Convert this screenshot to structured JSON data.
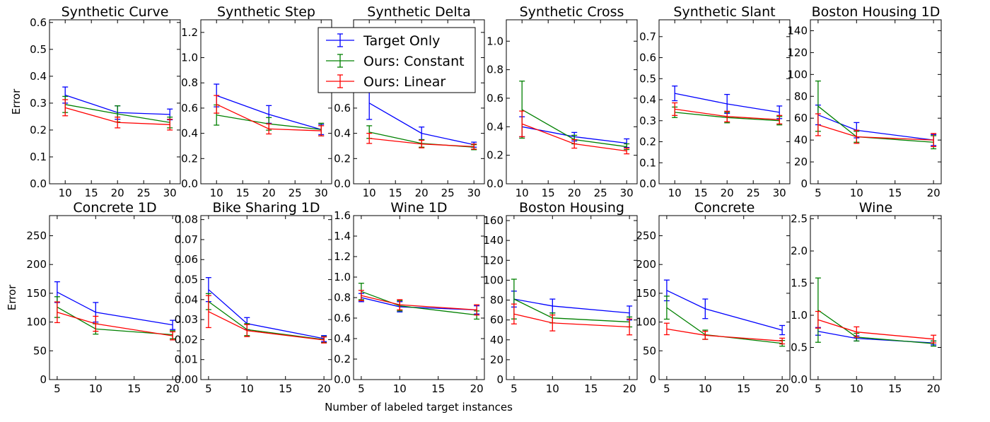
{
  "figure": {
    "xlabel": "Number of labeled target instances",
    "ylabel": "Error"
  },
  "legend": {
    "entries": [
      {
        "label": "Target Only",
        "color": "#0000ff"
      },
      {
        "label": "Ours: Constant",
        "color": "#008000"
      },
      {
        "label": "Ours: Linear",
        "color": "#ff0000"
      }
    ]
  },
  "chart_data": [
    {
      "type": "line",
      "title": "Synthetic Curve",
      "ylabel": "Error",
      "x": [
        10,
        20,
        30
      ],
      "xlim": [
        7,
        32
      ],
      "xticks": [
        10,
        15,
        20,
        25,
        30
      ],
      "ylim": [
        0,
        0.61
      ],
      "yticks": [
        0,
        0.1,
        0.2,
        0.3,
        0.4,
        0.5,
        0.6
      ],
      "yticklabels": [
        "0.0",
        "0.1",
        "0.2",
        "0.3",
        "0.4",
        "0.5",
        "0.6"
      ],
      "series": [
        {
          "name": "Target Only",
          "color": "#0000ff",
          "values": [
            0.33,
            0.265,
            0.258
          ],
          "errors": [
            0.03,
            0.025,
            0.02
          ]
        },
        {
          "name": "Ours: Constant",
          "color": "#008000",
          "values": [
            0.295,
            0.26,
            0.228
          ],
          "errors": [
            0.03,
            0.03,
            0.02
          ]
        },
        {
          "name": "Ours: Linear",
          "color": "#ff0000",
          "values": [
            0.283,
            0.228,
            0.22
          ],
          "errors": [
            0.03,
            0.02,
            0.02
          ]
        }
      ]
    },
    {
      "type": "line",
      "title": "Synthetic Step",
      "ylabel": "",
      "x": [
        10,
        20,
        30
      ],
      "xlim": [
        7,
        32
      ],
      "xticks": [
        10,
        15,
        20,
        25,
        30
      ],
      "ylim": [
        0,
        1.3
      ],
      "yticks": [
        0,
        0.2,
        0.4,
        0.6,
        0.8,
        1.0,
        1.2
      ],
      "yticklabels": [
        "0.0",
        "0.2",
        "0.4",
        "0.6",
        "0.8",
        "1.0",
        "1.2"
      ],
      "series": [
        {
          "name": "Target Only",
          "color": "#0000ff",
          "values": [
            0.7,
            0.55,
            0.43
          ],
          "errors": [
            0.09,
            0.07,
            0.04
          ]
        },
        {
          "name": "Ours: Constant",
          "color": "#008000",
          "values": [
            0.545,
            0.475,
            0.43
          ],
          "errors": [
            0.08,
            0.05,
            0.05
          ]
        },
        {
          "name": "Ours: Linear",
          "color": "#ff0000",
          "values": [
            0.63,
            0.435,
            0.42
          ],
          "errors": [
            0.07,
            0.04,
            0.04
          ]
        }
      ]
    },
    {
      "type": "line",
      "title": "Synthetic Delta",
      "ylabel": "",
      "x": [
        10,
        20,
        30
      ],
      "xlim": [
        7,
        32
      ],
      "xticks": [
        10,
        15,
        20,
        25,
        30
      ],
      "ylim": [
        0,
        1.3
      ],
      "yticks": [
        0,
        0.2,
        0.4,
        0.6,
        0.8,
        1.0,
        1.2
      ],
      "yticklabels": [
        "0.0",
        "0.2",
        "0.4",
        "0.6",
        "0.8",
        "1.0",
        "1.2"
      ],
      "series": [
        {
          "name": "Target Only",
          "color": "#0000ff",
          "values": [
            0.64,
            0.4,
            0.31
          ],
          "errors": [
            0.13,
            0.05,
            0.02
          ]
        },
        {
          "name": "Ours: Constant",
          "color": "#008000",
          "values": [
            0.41,
            0.32,
            0.29
          ],
          "errors": [
            0.05,
            0.03,
            0.02
          ]
        },
        {
          "name": "Ours: Linear",
          "color": "#ff0000",
          "values": [
            0.36,
            0.315,
            0.295
          ],
          "errors": [
            0.04,
            0.03,
            0.02
          ]
        }
      ]
    },
    {
      "type": "line",
      "title": "Synthetic Cross",
      "ylabel": "",
      "x": [
        10,
        20,
        30
      ],
      "xlim": [
        7,
        32
      ],
      "xticks": [
        10,
        15,
        20,
        25,
        30
      ],
      "ylim": [
        0,
        1.15
      ],
      "yticks": [
        0,
        0.2,
        0.4,
        0.6,
        0.8,
        1.0
      ],
      "yticklabels": [
        "0.0",
        "0.2",
        "0.4",
        "0.6",
        "0.8",
        "1.0"
      ],
      "series": [
        {
          "name": "Target Only",
          "color": "#0000ff",
          "values": [
            0.4,
            0.33,
            0.285
          ],
          "errors": [
            0.07,
            0.03,
            0.03
          ]
        },
        {
          "name": "Ours: Constant",
          "color": "#008000",
          "values": [
            0.52,
            0.31,
            0.26
          ],
          "errors": [
            0.2,
            0.03,
            0.02
          ]
        },
        {
          "name": "Ours: Linear",
          "color": "#ff0000",
          "values": [
            0.42,
            0.28,
            0.23
          ],
          "errors": [
            0.09,
            0.03,
            0.02
          ]
        }
      ]
    },
    {
      "type": "line",
      "title": "Synthetic Slant",
      "ylabel": "",
      "x": [
        10,
        20,
        30
      ],
      "xlim": [
        7,
        32
      ],
      "xticks": [
        10,
        15,
        20,
        25,
        30
      ],
      "ylim": [
        0,
        0.78
      ],
      "yticks": [
        0,
        0.1,
        0.2,
        0.3,
        0.4,
        0.5,
        0.6,
        0.7
      ],
      "yticklabels": [
        "0.0",
        "0.1",
        "0.2",
        "0.3",
        "0.4",
        "0.5",
        "0.6",
        "0.7"
      ],
      "series": [
        {
          "name": "Target Only",
          "color": "#0000ff",
          "values": [
            0.43,
            0.38,
            0.34
          ],
          "errors": [
            0.035,
            0.045,
            0.03
          ]
        },
        {
          "name": "Ours: Constant",
          "color": "#008000",
          "values": [
            0.34,
            0.315,
            0.3
          ],
          "errors": [
            0.025,
            0.025,
            0.02
          ]
        },
        {
          "name": "Ours: Linear",
          "color": "#ff0000",
          "values": [
            0.355,
            0.32,
            0.305
          ],
          "errors": [
            0.03,
            0.025,
            0.02
          ]
        }
      ]
    },
    {
      "type": "line",
      "title": "Boston Housing 1D",
      "ylabel": "",
      "x": [
        5,
        10,
        20
      ],
      "xlim": [
        4,
        21
      ],
      "xticks": [
        5,
        10,
        15,
        20
      ],
      "ylim": [
        0,
        150
      ],
      "yticks": [
        0,
        20,
        40,
        60,
        80,
        100,
        120,
        140
      ],
      "yticklabels": [
        "0",
        "20",
        "40",
        "60",
        "80",
        "100",
        "120",
        "140"
      ],
      "series": [
        {
          "name": "Target Only",
          "color": "#0000ff",
          "values": [
            63,
            49,
            40
          ],
          "errors": [
            9,
            7,
            5
          ]
        },
        {
          "name": "Ours: Constant",
          "color": "#008000",
          "values": [
            71,
            43,
            38
          ],
          "errors": [
            23,
            5,
            6
          ]
        },
        {
          "name": "Ours: Linear",
          "color": "#ff0000",
          "values": [
            54,
            43,
            40
          ],
          "errors": [
            10,
            6,
            6
          ]
        }
      ]
    },
    {
      "type": "line",
      "title": "Concrete 1D",
      "ylabel": "Error",
      "x": [
        5,
        10,
        20
      ],
      "xlim": [
        4,
        21
      ],
      "xticks": [
        5,
        10,
        15,
        20
      ],
      "ylim": [
        0,
        285
      ],
      "yticks": [
        0,
        50,
        100,
        150,
        200,
        250
      ],
      "yticklabels": [
        "0",
        "50",
        "100",
        "150",
        "200",
        "250"
      ],
      "series": [
        {
          "name": "Target Only",
          "color": "#0000ff",
          "values": [
            152,
            117,
            95
          ],
          "errors": [
            18,
            17,
            8
          ]
        },
        {
          "name": "Ours: Constant",
          "color": "#008000",
          "values": [
            126,
            88,
            78
          ],
          "errors": [
            18,
            9,
            7
          ]
        },
        {
          "name": "Ours: Linear",
          "color": "#ff0000",
          "values": [
            117,
            97,
            76
          ],
          "errors": [
            18,
            13,
            7
          ]
        }
      ]
    },
    {
      "type": "line",
      "title": "Bike Sharing 1D",
      "ylabel": "",
      "x": [
        5,
        10,
        20
      ],
      "xlim": [
        4,
        21
      ],
      "xticks": [
        5,
        10,
        15,
        20
      ],
      "ylim": [
        0,
        0.082
      ],
      "yticks": [
        0,
        0.01,
        0.02,
        0.03,
        0.04,
        0.05,
        0.06,
        0.07,
        0.08
      ],
      "yticklabels": [
        "0.00",
        "0.01",
        "0.02",
        "0.03",
        "0.04",
        "0.05",
        "0.06",
        "0.07",
        "0.08"
      ],
      "series": [
        {
          "name": "Target Only",
          "color": "#0000ff",
          "values": [
            0.045,
            0.028,
            0.0205
          ],
          "errors": [
            0.006,
            0.003,
            0.0015
          ]
        },
        {
          "name": "Ours: Constant",
          "color": "#008000",
          "values": [
            0.039,
            0.025,
            0.02
          ],
          "errors": [
            0.004,
            0.003,
            0.0015
          ]
        },
        {
          "name": "Ours: Linear",
          "color": "#ff0000",
          "values": [
            0.034,
            0.0245,
            0.0198
          ],
          "errors": [
            0.008,
            0.003,
            0.0015
          ]
        }
      ]
    },
    {
      "type": "line",
      "title": "Wine 1D",
      "ylabel": "",
      "x": [
        5,
        10,
        20
      ],
      "xlim": [
        4,
        21
      ],
      "xticks": [
        5,
        10,
        15,
        20
      ],
      "ylim": [
        0,
        1.6
      ],
      "yticks": [
        0,
        0.2,
        0.4,
        0.6,
        0.8,
        1.0,
        1.2,
        1.4,
        1.6
      ],
      "yticklabels": [
        "0.0",
        "0.2",
        "0.4",
        "0.6",
        "0.8",
        "1.0",
        "1.2",
        "1.4",
        "1.6"
      ],
      "series": [
        {
          "name": "Target Only",
          "color": "#0000ff",
          "values": [
            0.8,
            0.71,
            0.68
          ],
          "errors": [
            0.04,
            0.05,
            0.04
          ]
        },
        {
          "name": "Ours: Constant",
          "color": "#008000",
          "values": [
            0.86,
            0.72,
            0.63
          ],
          "errors": [
            0.08,
            0.05,
            0.04
          ]
        },
        {
          "name": "Ours: Linear",
          "color": "#ff0000",
          "values": [
            0.82,
            0.73,
            0.68
          ],
          "errors": [
            0.05,
            0.05,
            0.05
          ]
        }
      ]
    },
    {
      "type": "line",
      "title": "Boston Housing",
      "ylabel": "",
      "x": [
        5,
        10,
        20
      ],
      "xlim": [
        4,
        21
      ],
      "xticks": [
        5,
        10,
        15,
        20
      ],
      "ylim": [
        0,
        165
      ],
      "yticks": [
        0,
        20,
        40,
        60,
        80,
        100,
        120,
        140,
        160
      ],
      "yticklabels": [
        "0",
        "20",
        "40",
        "60",
        "80",
        "100",
        "120",
        "140",
        "160"
      ],
      "series": [
        {
          "name": "Target Only",
          "color": "#0000ff",
          "values": [
            81,
            74,
            67
          ],
          "errors": [
            8,
            7,
            7
          ]
        },
        {
          "name": "Ours: Constant",
          "color": "#008000",
          "values": [
            81,
            62,
            58
          ],
          "errors": [
            20,
            5,
            5
          ]
        },
        {
          "name": "Ours: Linear",
          "color": "#ff0000",
          "values": [
            66,
            57,
            53
          ],
          "errors": [
            10,
            8,
            8
          ]
        }
      ]
    },
    {
      "type": "line",
      "title": "Concrete",
      "ylabel": "",
      "x": [
        5,
        10,
        20
      ],
      "xlim": [
        4,
        21
      ],
      "xticks": [
        5,
        10,
        15,
        20
      ],
      "ylim": [
        0,
        285
      ],
      "yticks": [
        0,
        50,
        100,
        150,
        200,
        250
      ],
      "yticklabels": [
        "0",
        "50",
        "100",
        "150",
        "200",
        "250"
      ],
      "series": [
        {
          "name": "Target Only",
          "color": "#0000ff",
          "values": [
            155,
            123,
            86
          ],
          "errors": [
            18,
            17,
            8
          ]
        },
        {
          "name": "Ours: Constant",
          "color": "#008000",
          "values": [
            125,
            78,
            63
          ],
          "errors": [
            20,
            8,
            5
          ]
        },
        {
          "name": "Ours: Linear",
          "color": "#ff0000",
          "values": [
            88,
            77,
            67
          ],
          "errors": [
            10,
            7,
            5
          ]
        }
      ]
    },
    {
      "type": "line",
      "title": "Wine",
      "ylabel": "",
      "x": [
        5,
        10,
        20
      ],
      "xlim": [
        4,
        21
      ],
      "xticks": [
        5,
        10,
        15,
        20
      ],
      "ylim": [
        0,
        2.55
      ],
      "yticks": [
        0,
        0.5,
        1.0,
        1.5,
        2.0,
        2.5
      ],
      "yticklabels": [
        "0.0",
        "0.5",
        "1.0",
        "1.5",
        "2.0",
        "2.5"
      ],
      "series": [
        {
          "name": "Target Only",
          "color": "#0000ff",
          "values": [
            0.75,
            0.64,
            0.57
          ],
          "errors": [
            0.06,
            0.04,
            0.03
          ]
        },
        {
          "name": "Ours: Constant",
          "color": "#008000",
          "values": [
            1.08,
            0.66,
            0.56
          ],
          "errors": [
            0.5,
            0.06,
            0.04
          ]
        },
        {
          "name": "Ours: Linear",
          "color": "#ff0000",
          "values": [
            0.93,
            0.74,
            0.63
          ],
          "errors": [
            0.13,
            0.08,
            0.06
          ]
        }
      ]
    }
  ]
}
